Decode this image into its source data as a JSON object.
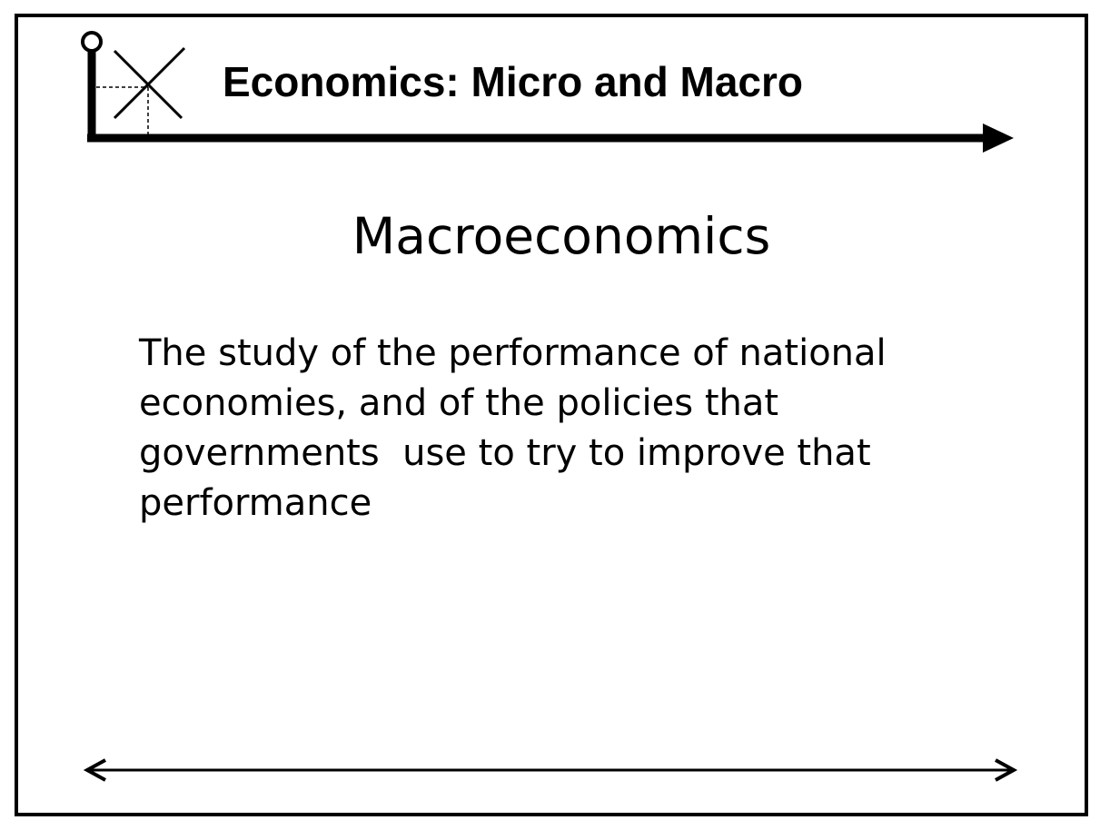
{
  "slide": {
    "header_title": "Economics:  Micro and Macro",
    "heading": "Macroeconomics",
    "body_lines": [
      "The study of the performance of national",
      "economies, and of the policies that",
      "governments  use to try to improve that",
      "performance"
    ],
    "icons": {
      "logo": "supply-demand-graph-icon",
      "header_arrow": "right-arrow-icon",
      "footer_arrow": "double-headed-arrow-icon"
    },
    "colors": {
      "ink": "#000000",
      "background": "#ffffff"
    }
  }
}
